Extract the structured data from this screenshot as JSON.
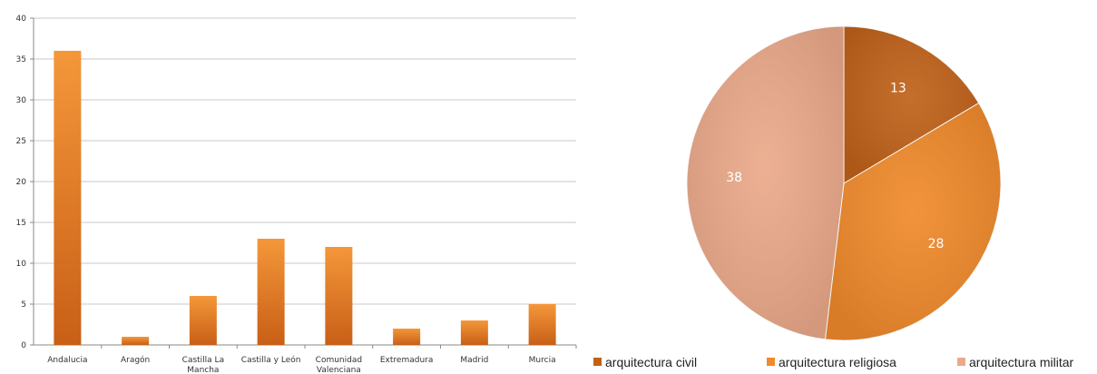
{
  "chart_data": [
    {
      "type": "bar",
      "categories": [
        "Andalucia",
        "Aragón",
        "Castilla La Mancha",
        "Castilla y León",
        "Comunidad Valenciana",
        "Extremadura",
        "Madrid",
        "Murcia"
      ],
      "category_lines": [
        [
          "Andalucia"
        ],
        [
          "Aragón"
        ],
        [
          "Castilla La",
          "Mancha"
        ],
        [
          "Castilla y León"
        ],
        [
          "Comunidad",
          "Valenciana"
        ],
        [
          "Extremadura"
        ],
        [
          "Madrid"
        ],
        [
          "Murcia"
        ]
      ],
      "values": [
        36,
        1,
        6,
        13,
        12,
        2,
        3,
        5
      ],
      "ylim": [
        0,
        40
      ],
      "yticks": [
        0,
        5,
        10,
        15,
        20,
        25,
        30,
        35,
        40
      ],
      "title": "",
      "xlabel": "",
      "ylabel": "",
      "grid": true,
      "colors": {
        "bar_top": "#F4973A",
        "bar_bottom": "#C85F16",
        "grid": "#C8C8C8",
        "axis": "#888888"
      }
    },
    {
      "type": "pie",
      "slices": [
        {
          "label": "arquitectura civil",
          "value": 13,
          "color": "#C0621A"
        },
        {
          "label": "arquitectura religiosa",
          "value": 28,
          "color": "#F08A2C"
        },
        {
          "label": "arquitectura militar",
          "value": 38,
          "color": "#EBA98A"
        }
      ],
      "legend": "bottom"
    }
  ]
}
